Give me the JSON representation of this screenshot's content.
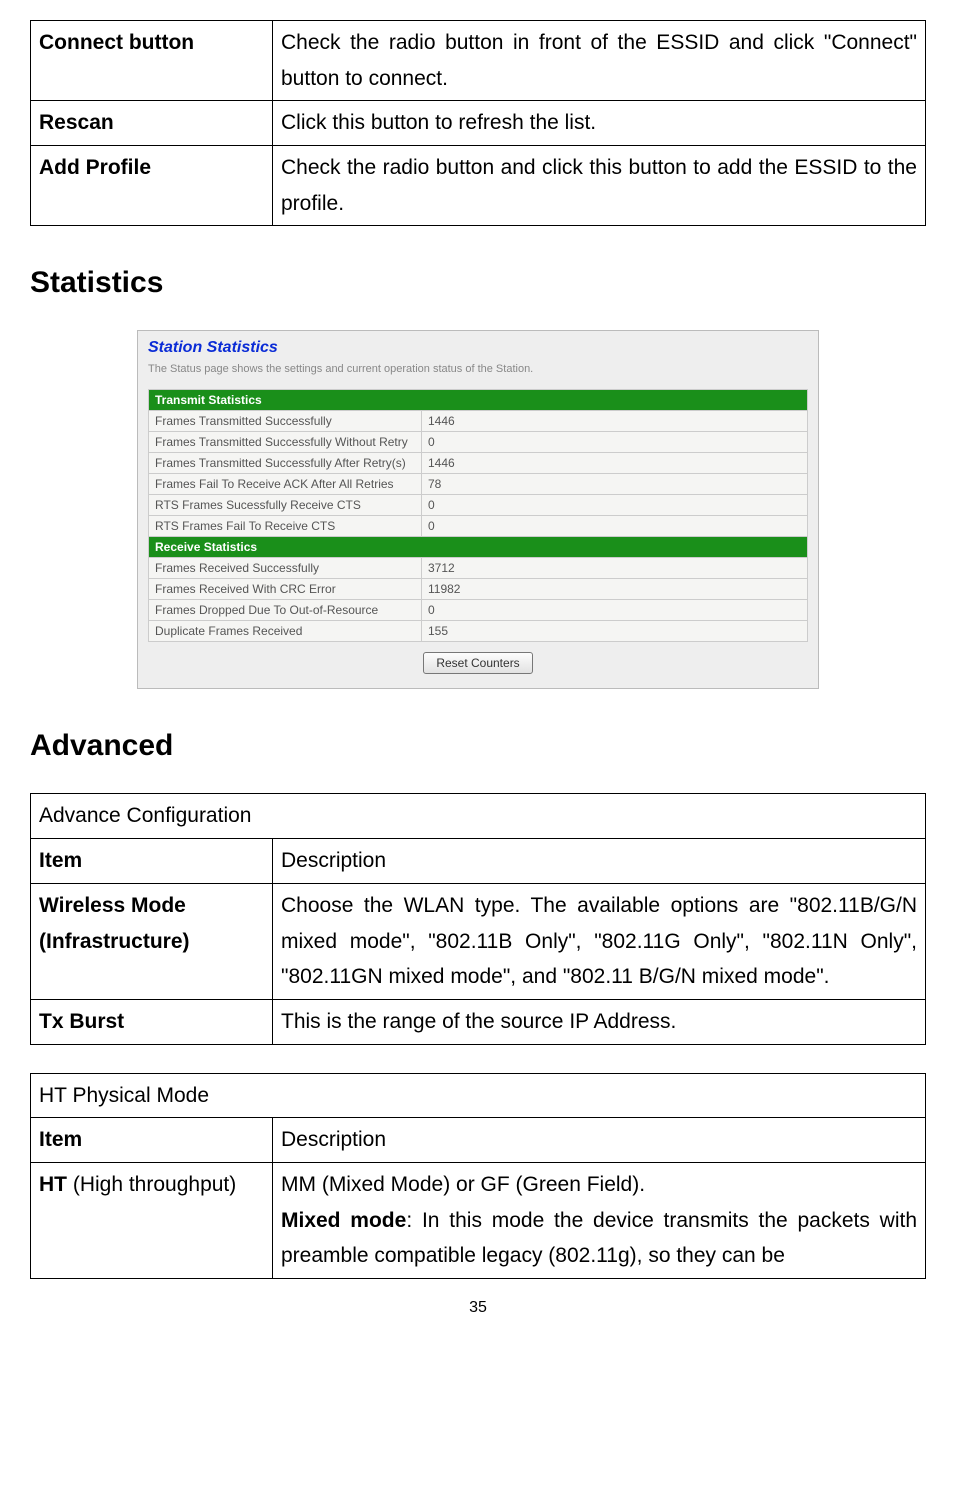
{
  "top_table": {
    "rows": [
      {
        "label": "Connect button",
        "label_bold": true,
        "desc": "Check the radio button in front of the ESSID and click \"Connect\" button to connect.",
        "justify": true
      },
      {
        "label": "Rescan",
        "label_bold": true,
        "desc": "Click this button to refresh the list.",
        "justify": false
      },
      {
        "label": "Add Profile",
        "label_bold": true,
        "desc": "Check the radio button and click this button to add the ESSID to the profile.",
        "justify": true
      }
    ]
  },
  "stats_heading": "Statistics",
  "stats_card": {
    "title": "Station Statistics",
    "subtitle": "The Status page shows the settings and current operation status of the Station.",
    "tx_header": "Transmit Statistics",
    "tx_rows": [
      {
        "label": "Frames Transmitted Successfully",
        "value": "1446"
      },
      {
        "label": "Frames Transmitted Successfully Without Retry",
        "value": "0"
      },
      {
        "label": "Frames Transmitted Successfully After Retry(s)",
        "value": "1446"
      },
      {
        "label": "Frames Fail To Receive ACK After All Retries",
        "value": "78"
      },
      {
        "label": "RTS Frames Sucessfully Receive CTS",
        "value": "0"
      },
      {
        "label": "RTS Frames Fail To Receive CTS",
        "value": "0"
      }
    ],
    "rx_header": "Receive Statistics",
    "rx_rows": [
      {
        "label": "Frames Received Successfully",
        "value": "3712"
      },
      {
        "label": "Frames Received With CRC Error",
        "value": "11982"
      },
      {
        "label": "Frames Dropped Due To Out-of-Resource",
        "value": "0"
      },
      {
        "label": "Duplicate Frames Received",
        "value": "155"
      }
    ],
    "reset_label": "Reset Counters"
  },
  "adv_heading": "Advanced",
  "adv_config": {
    "caption": "Advance Configuration",
    "header_item": "Item",
    "header_desc": "Description",
    "rows": [
      {
        "label_html": "Wireless Mode (Infrastructure)",
        "desc": "Choose the WLAN type. The available options are \"802.11B/G/N mixed mode\", \"802.11B Only\", \"802.11G Only\", \"802.11N Only\", \"802.11GN mixed mode\", and \"802.11 B/G/N mixed mode\".",
        "justify": true
      },
      {
        "label_html": "Tx Burst",
        "desc": "This is the range of the source IP Address.",
        "justify": false
      }
    ]
  },
  "ht_mode": {
    "caption": "HT Physical Mode",
    "header_item": "Item",
    "header_desc": "Description",
    "row_label_bold": "HT",
    "row_label_rest": " (High throughput)",
    "desc_line1": "MM (Mixed Mode) or GF (Green Field).",
    "desc_bold": "Mixed mode",
    "desc_rest": ": In this mode the device transmits the packets with preamble compatible legacy (802.11g), so they can be"
  },
  "page_number": "35"
}
